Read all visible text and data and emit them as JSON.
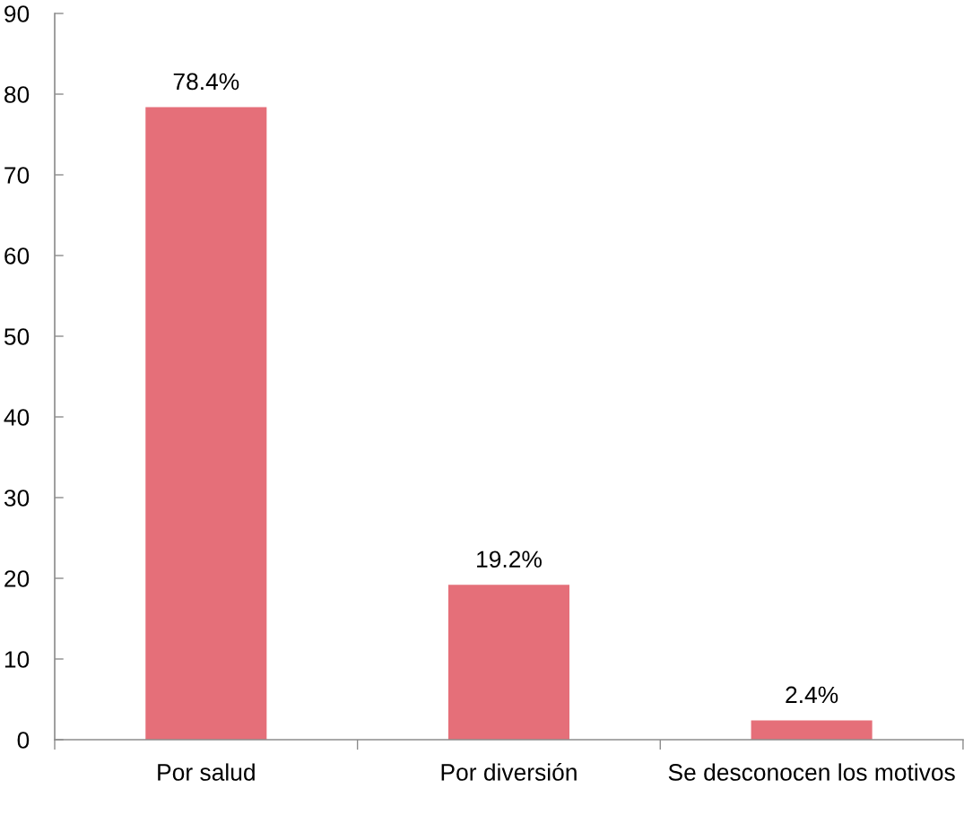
{
  "chart_data": {
    "type": "bar",
    "categories": [
      "Por salud",
      "Por diversión",
      "Se desconocen los motivos"
    ],
    "values": [
      78.4,
      19.2,
      2.4
    ],
    "value_labels": [
      "78.4%",
      "19.2%",
      "2.4%"
    ],
    "color": "#e56f79",
    "ylim": [
      0,
      90
    ],
    "yticks": [
      0,
      10,
      20,
      30,
      40,
      50,
      60,
      70,
      80,
      90
    ]
  }
}
